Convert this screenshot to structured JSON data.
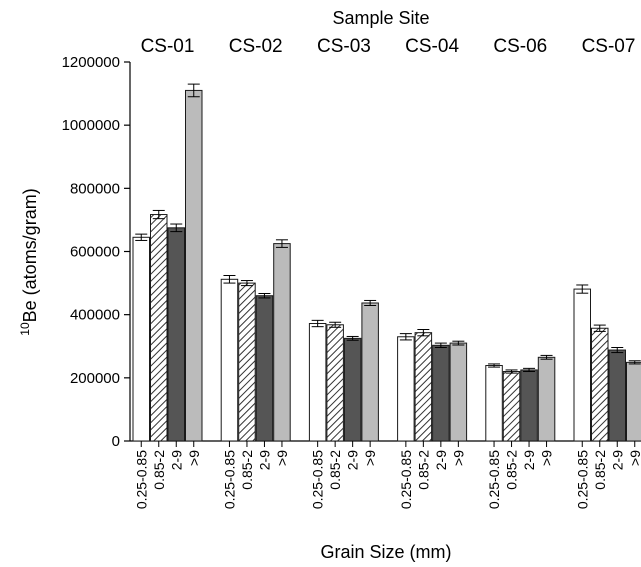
{
  "chart_data": {
    "type": "bar",
    "top_title": "Sample Site",
    "xlabel": "Grain Size (mm)",
    "ylabel_sup": "10",
    "ylabel_main": "Be (atoms/gram)",
    "ylim": [
      0,
      1200000
    ],
    "yticks": [
      "0",
      "200000",
      "400000",
      "600000",
      "800000",
      "1000000",
      "1200000"
    ],
    "grain_sizes": [
      "0.25-0.85",
      "0.85-2",
      "2-9",
      ">9"
    ],
    "groups": [
      {
        "site": "CS-01",
        "values": [
          645000,
          717000,
          675000,
          1110000
        ],
        "errors": [
          10000,
          13000,
          12000,
          20000
        ]
      },
      {
        "site": "CS-02",
        "values": [
          512000,
          500000,
          460000,
          625000
        ],
        "errors": [
          12000,
          8000,
          7000,
          12000
        ]
      },
      {
        "site": "CS-03",
        "values": [
          372000,
          368000,
          325000,
          437000
        ],
        "errors": [
          10000,
          8000,
          6000,
          8000
        ]
      },
      {
        "site": "CS-04",
        "values": [
          330000,
          343000,
          303000,
          310000
        ],
        "errors": [
          10000,
          10000,
          7000,
          6000
        ]
      },
      {
        "site": "CS-06",
        "values": [
          239000,
          220000,
          225000,
          265000
        ],
        "errors": [
          5000,
          5000,
          5000,
          6000
        ]
      },
      {
        "site": "CS-07",
        "values": [
          481000,
          357000,
          288000,
          249000
        ],
        "errors": [
          13000,
          10000,
          8000,
          5000
        ]
      }
    ],
    "bar_styles": [
      {
        "fill": "#ffffff",
        "hatch": false
      },
      {
        "fill": "#ffffff",
        "hatch": true
      },
      {
        "fill": "#555555",
        "hatch": false
      },
      {
        "fill": "#bbbbbb",
        "hatch": false
      }
    ],
    "colors": {
      "axis": "#000000",
      "bar_stroke": "#1a1a1a",
      "dark_bar": "#555555",
      "light_bar": "#bbbbbb",
      "hatch": "#333333"
    }
  }
}
